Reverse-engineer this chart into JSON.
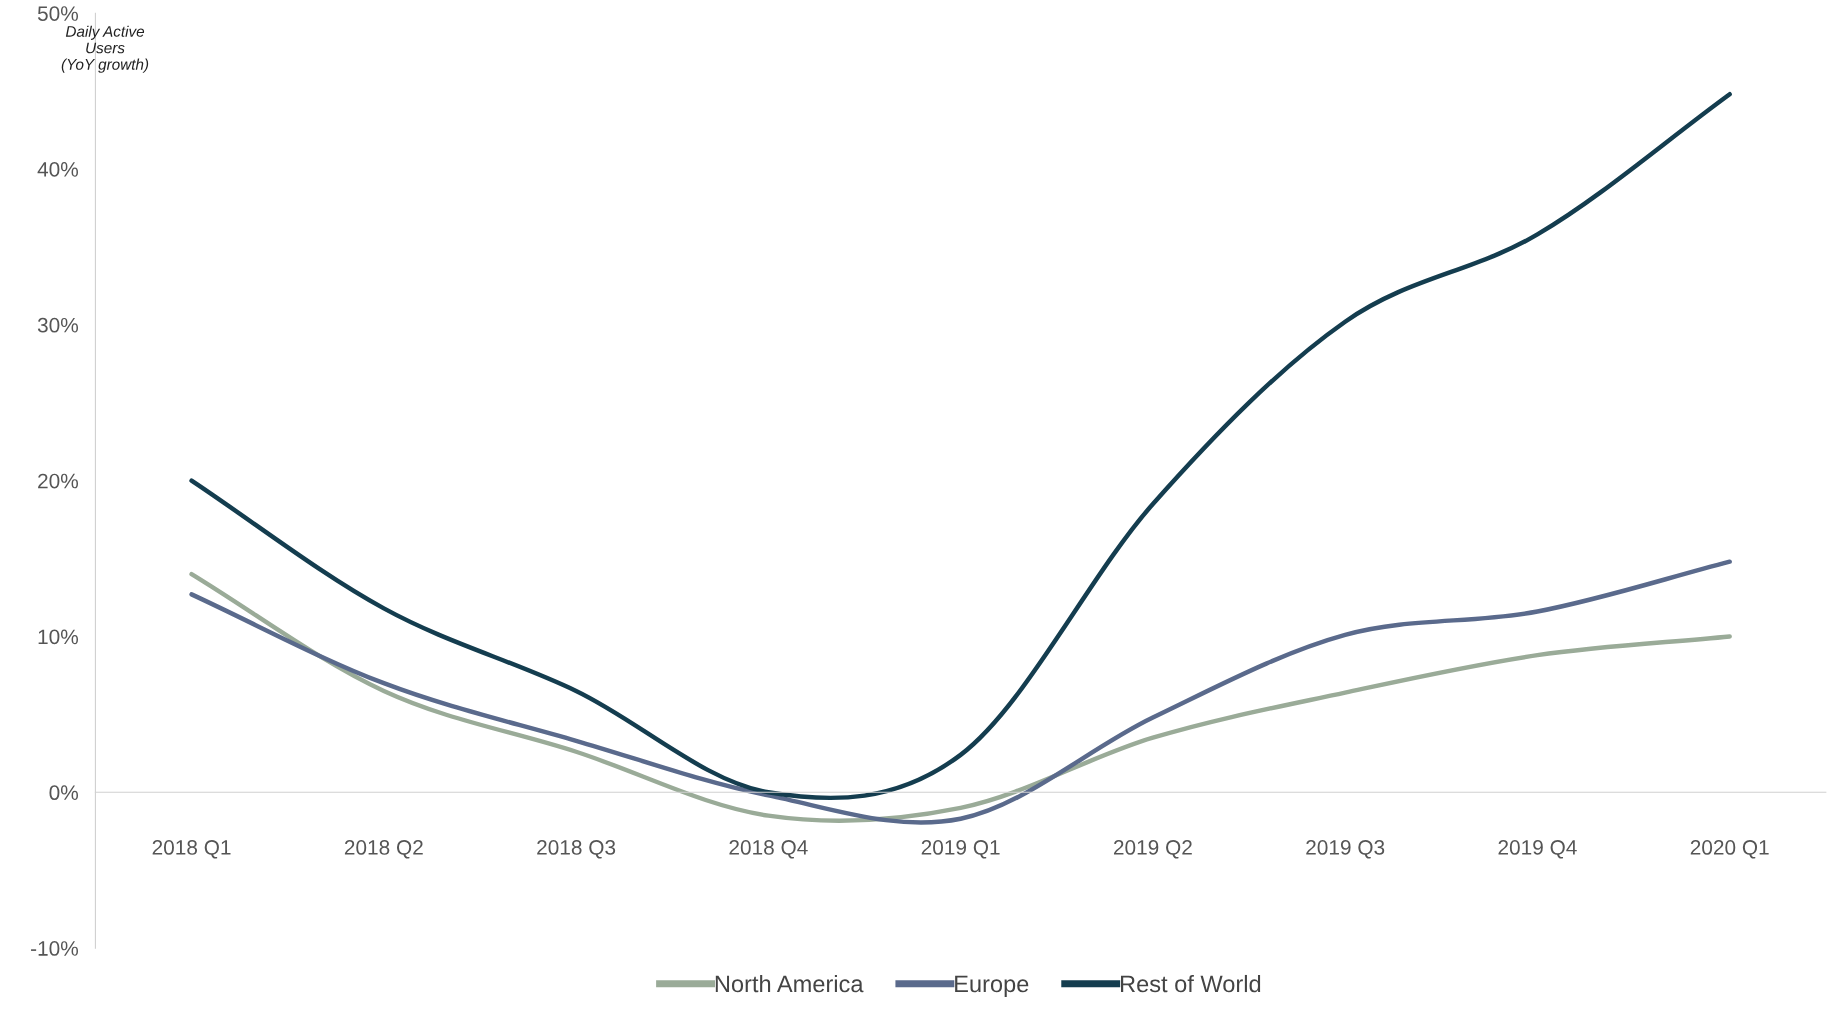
{
  "chart_data": {
    "type": "line",
    "ylabel": "Daily Active\nUsers\n(YoY growth)",
    "categories": [
      "2018 Q1",
      "2018 Q2",
      "2018 Q3",
      "2018 Q4",
      "2019 Q1",
      "2019 Q2",
      "2019 Q3",
      "2019 Q4",
      "2020 Q1"
    ],
    "series": [
      {
        "name": "North America",
        "color": "#9aab98",
        "values": [
          14.0,
          6.5,
          2.6,
          -1.5,
          -1.0,
          3.5,
          6.4,
          8.8,
          10.0
        ]
      },
      {
        "name": "Europe",
        "color": "#5a6a8c",
        "values": [
          12.7,
          7.0,
          3.3,
          -0.2,
          -1.7,
          4.8,
          10.1,
          11.6,
          14.8
        ]
      },
      {
        "name": "Rest of World",
        "color": "#143d4f",
        "values": [
          20.0,
          11.8,
          6.5,
          0.0,
          2.4,
          18.5,
          30.2,
          35.8,
          44.8
        ]
      }
    ],
    "ylim": [
      -10,
      50
    ],
    "yticks": [
      {
        "value": -10,
        "label": "-10%"
      },
      {
        "value": 0,
        "label": "0%"
      },
      {
        "value": 10,
        "label": "10%"
      },
      {
        "value": 20,
        "label": "20%"
      },
      {
        "value": 30,
        "label": "30%"
      },
      {
        "value": 40,
        "label": "40%"
      },
      {
        "value": 50,
        "label": "50%"
      }
    ],
    "legend": "bottom",
    "grid": false,
    "marker": "none",
    "line_style": "solid"
  }
}
